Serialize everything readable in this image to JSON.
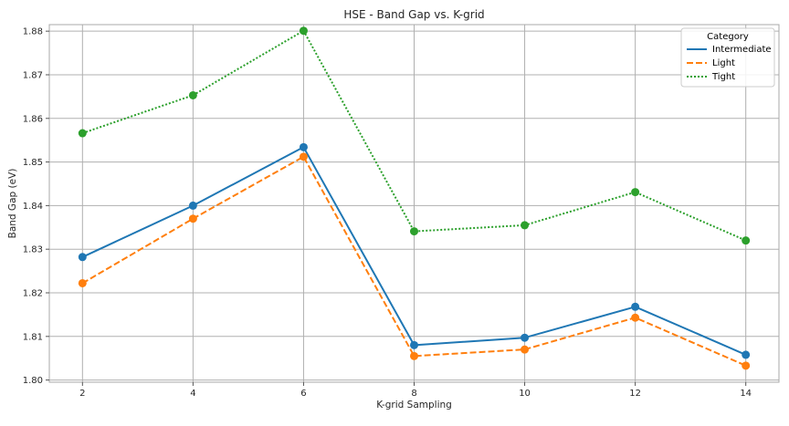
{
  "chart_data": {
    "type": "line",
    "title": "HSE - Band Gap vs. K-grid",
    "xlabel": "K-grid Sampling",
    "ylabel": "Band Gap (eV)",
    "x": [
      2,
      4,
      6,
      8,
      10,
      12,
      14
    ],
    "xticks": [
      "2",
      "4",
      "6",
      "8",
      "10",
      "12",
      "14"
    ],
    "yticks": [
      "1.80",
      "1.81",
      "1.82",
      "1.83",
      "1.84",
      "1.85",
      "1.86",
      "1.87",
      "1.88"
    ],
    "xlim": [
      1.4,
      14.6
    ],
    "ylim": [
      1.7995,
      1.8815
    ],
    "grid": true,
    "legend": {
      "title": "Category",
      "position": "top-right"
    },
    "series": [
      {
        "name": "Intermediate",
        "color": "#1f77b4",
        "dash": "solid",
        "values": [
          1.8282,
          1.84,
          1.8534,
          1.808,
          1.8097,
          1.8168,
          1.8058
        ]
      },
      {
        "name": "Light",
        "color": "#ff7f0e",
        "dash": "dashed",
        "values": [
          1.8222,
          1.837,
          1.8512,
          1.8055,
          1.807,
          1.8143,
          1.8033
        ]
      },
      {
        "name": "Tight",
        "color": "#2ca02c",
        "dash": "dotted",
        "values": [
          1.8566,
          1.8653,
          1.8801,
          1.8341,
          1.8355,
          1.8431,
          1.832
        ]
      }
    ]
  }
}
